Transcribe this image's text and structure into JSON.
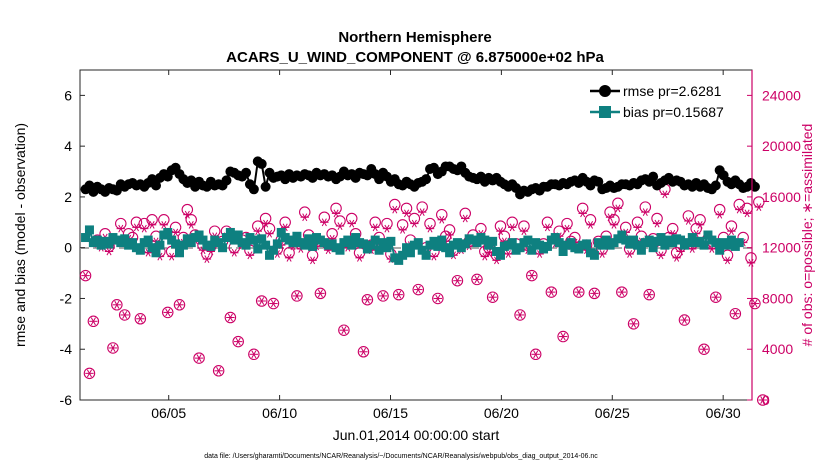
{
  "chart_data": {
    "type": "line",
    "title": "Northern Hemisphere",
    "subtitle": "ACARS_U_WIND_COMPONENT @ 6.875000e+02 hPa",
    "xlabel": "Jun.01,2014 00:00:00 start",
    "ylabel": "rmse and bias (model - observation)",
    "y2label": "# of obs: o=possible; ∗=assimilated",
    "footnote": "data file: /Users/gharamti/Documents/NCAR/Reanalysis/~/Documents/NCAR/Reanalysis/webpub/obs_diag_output_2014-06.nc",
    "xlim": [
      1.0,
      31.3
    ],
    "ylim": [
      -6,
      7
    ],
    "y2lim": [
      0,
      26000
    ],
    "x_ticks": [
      5,
      10,
      15,
      20,
      25,
      30
    ],
    "x_tick_labels": [
      "06/05",
      "06/10",
      "06/15",
      "06/20",
      "06/25",
      "06/30"
    ],
    "y_ticks": [
      -6,
      -4,
      -2,
      0,
      2,
      4,
      6
    ],
    "y_tick_labels": [
      "-6",
      "-4",
      "-2",
      "0",
      "2",
      "4",
      "6"
    ],
    "y2_ticks": [
      0,
      4000,
      8000,
      12000,
      16000,
      20000,
      24000
    ],
    "y2_tick_labels": [
      "0",
      "4000",
      "8000",
      "12000",
      "16000",
      "20000",
      "24000"
    ],
    "colors": {
      "rmse": "#000000",
      "bias": "#0e8080",
      "obs": "#cc0066",
      "zero": "#aaaaaa"
    },
    "legend_position": "top-right",
    "series": [
      {
        "name": "rmse pr=2.6281",
        "axis": "left",
        "marker": "circle",
        "values": [
          2.3,
          2.45,
          2.2,
          2.4,
          2.3,
          2.2,
          2.35,
          2.3,
          2.25,
          2.5,
          2.4,
          2.5,
          2.55,
          2.45,
          2.5,
          2.4,
          2.55,
          2.7,
          2.45,
          2.75,
          2.9,
          2.8,
          3.05,
          3.15,
          2.9,
          2.7,
          2.55,
          2.65,
          2.4,
          2.6,
          2.45,
          2.4,
          2.6,
          2.45,
          2.5,
          2.45,
          2.65,
          3.0,
          2.95,
          2.85,
          2.8,
          2.95,
          2.5,
          2.3,
          3.4,
          3.3,
          2.4,
          2.95,
          2.75,
          2.8,
          2.85,
          2.7,
          2.9,
          2.75,
          2.85,
          2.8,
          2.9,
          2.85,
          2.75,
          2.95,
          2.85,
          2.9,
          2.8,
          2.85,
          2.7,
          2.8,
          3.0,
          2.85,
          2.9,
          2.75,
          2.95,
          2.9,
          2.85,
          3.1,
          2.9,
          2.7,
          2.95,
          2.8,
          2.6,
          2.7,
          2.5,
          2.45,
          2.6,
          2.5,
          2.4,
          2.55,
          2.6,
          2.7,
          3.1,
          3.15,
          2.9,
          3.0,
          3.2,
          3.2,
          3.1,
          3.05,
          3.2,
          2.95,
          2.8,
          2.75,
          2.7,
          2.8,
          2.6,
          2.75,
          2.65,
          2.75,
          2.6,
          2.5,
          2.4,
          2.5,
          2.35,
          2.1,
          2.25,
          2.2,
          2.3,
          2.35,
          2.25,
          2.4,
          2.4,
          2.5,
          2.5,
          2.45,
          2.55,
          2.5,
          2.6,
          2.65,
          2.55,
          2.75,
          2.6,
          2.45,
          2.65,
          2.6,
          2.3,
          2.35,
          2.45,
          2.35,
          2.4,
          2.5,
          2.5,
          2.45,
          2.55,
          2.5,
          2.65,
          2.7,
          2.6,
          2.8,
          2.45,
          2.55,
          2.65,
          2.75,
          2.6,
          2.65,
          2.6,
          2.45,
          2.5,
          2.4,
          2.55,
          2.4,
          2.5,
          2.35,
          2.3,
          2.45,
          3.05,
          2.85,
          2.6,
          2.5,
          2.65,
          2.5,
          2.35,
          2.4,
          2.55,
          2.4
        ]
      },
      {
        "name": "bias pr=0.15687",
        "axis": "left",
        "marker": "square",
        "values": [
          0.4,
          0.7,
          0.2,
          0.3,
          0.1,
          0.25,
          0.15,
          0.4,
          0.3,
          0.2,
          0.35,
          0.1,
          0.2,
          0.0,
          -0.1,
          0.2,
          0.3,
          0.0,
          -0.2,
          0.1,
          0.5,
          0.6,
          0.3,
          0.15,
          -0.2,
          0.1,
          0.35,
          0.2,
          0.4,
          0.5,
          0.3,
          0.1,
          0.05,
          0.3,
          0.2,
          0.0,
          0.4,
          0.6,
          0.3,
          0.5,
          0.2,
          0.1,
          0.4,
          0.3,
          -0.05,
          0.35,
          0.1,
          -0.3,
          -0.1,
          0.15,
          0.6,
          0.4,
          0.3,
          0.2,
          0.45,
          0.2,
          0.1,
          0.35,
          0.05,
          0.4,
          0.3,
          0.2,
          0.1,
          0.15,
          0.0,
          -0.1,
          0.2,
          0.3,
          0.1,
          0.4,
          0.2,
          0.15,
          -0.05,
          0.1,
          0.3,
          -0.1,
          0.2,
          0.0,
          0.25,
          -0.4,
          -0.5,
          -0.3,
          0.0,
          -0.2,
          0.1,
          0.2,
          -0.1,
          -0.3,
          0.1,
          0.25,
          0.05,
          0.3,
          0.0,
          -0.2,
          0.1,
          0.2,
          0.0,
          0.15,
          0.35,
          0.3,
          0.2,
          0.4,
          0.3,
          0.1,
          0.25,
          -0.15,
          -0.3,
          0.05,
          0.1,
          0.2,
          -0.1,
          0.0,
          0.2,
          0.3,
          -0.1,
          0.2,
          0.1,
          -0.05,
          0.05,
          0.3,
          0.4,
          0.2,
          -0.15,
          0.1,
          0.2,
          0.0,
          -0.05,
          0.1,
          0.15,
          -0.2,
          -0.3,
          0.2,
          0.1,
          0.3,
          0.1,
          0.2,
          0.35,
          0.5,
          0.3,
          0.15,
          0.3,
          0.1,
          -0.1,
          0.2,
          0.3,
          0.0,
          0.25,
          0.4,
          0.1,
          0.3,
          0.2,
          0.35,
          0.3,
          0.1,
          0.2,
          0.4,
          0.2,
          0.25,
          0.1,
          0.5,
          0.3,
          0.2,
          -0.1,
          0.2,
          0.1,
          0.3,
          0.05,
          0.2
        ]
      },
      {
        "name": "obs possible",
        "axis": "right",
        "marker": "circle-open",
        "values": [
          9800,
          2100,
          6200,
          12600,
          12400,
          13100,
          12100,
          4100,
          7500,
          13900,
          6700,
          13100,
          12800,
          14000,
          6400,
          13900,
          12000,
          14200,
          12900,
          11700,
          14200,
          6900,
          11700,
          13600,
          7500,
          12800,
          15000,
          14200,
          13000,
          3300,
          12200,
          11500,
          12100,
          13300,
          2300,
          12500,
          13300,
          6500,
          12000,
          4600,
          12600,
          12800,
          11800,
          3600,
          13700,
          7800,
          14300,
          13500,
          7600,
          11900,
          12600,
          14000,
          11600,
          12500,
          8200,
          12300,
          14800,
          13000,
          11400,
          12500,
          8400,
          14400,
          12200,
          13100,
          15100,
          14100,
          5500,
          12400,
          14300,
          13100,
          11600,
          3800,
          7900,
          12200,
          14000,
          12800,
          8200,
          13900,
          11500,
          15400,
          8300,
          13800,
          15100,
          12600,
          14300,
          8700,
          15200,
          12000,
          13900,
          11700,
          8000,
          14600,
          12900,
          13400,
          11800,
          9400,
          12200,
          14700,
          12500,
          13000,
          9500,
          13500,
          11700,
          12000,
          8100,
          11400,
          13700,
          12900,
          11900,
          14000,
          12300,
          6700,
          13700,
          12200,
          9800,
          3600,
          11900,
          12300,
          14000,
          8500,
          12700,
          13300,
          5000,
          13900,
          12500,
          12800,
          8500,
          15100,
          12200,
          14200,
          8400,
          12500,
          11900,
          12900,
          14800,
          14200,
          15500,
          8500,
          13600,
          11900,
          6000,
          14000,
          12900,
          15200,
          8300,
          12700,
          14300,
          11800,
          16600,
          12800,
          13500,
          11600,
          12100,
          6300,
          14500,
          12300,
          13500,
          14200,
          4000,
          12700,
          12300,
          8100,
          15000,
          12800,
          11400,
          13700,
          6800,
          15400,
          12800,
          15100,
          11200,
          7600,
          15600,
          0
        ]
      },
      {
        "name": "obs assimilated",
        "axis": "right",
        "marker": "asterisk",
        "values": [
          9800,
          2100,
          6200,
          12300,
          12000,
          12800,
          11700,
          4100,
          7500,
          13500,
          6700,
          12700,
          12400,
          13600,
          6400,
          13500,
          11600,
          13800,
          12500,
          11300,
          13800,
          6900,
          11300,
          13200,
          7500,
          12400,
          14600,
          13800,
          12600,
          3300,
          11800,
          11100,
          11700,
          12900,
          2300,
          12100,
          12900,
          6500,
          11600,
          4600,
          12200,
          12400,
          11400,
          3600,
          13300,
          7800,
          13900,
          13100,
          7600,
          11500,
          12200,
          13600,
          11200,
          12100,
          8200,
          11900,
          14400,
          12600,
          11000,
          12100,
          8400,
          14000,
          11800,
          12700,
          14700,
          13700,
          5500,
          12000,
          13900,
          12700,
          11200,
          3800,
          7900,
          11800,
          13600,
          12400,
          8200,
          13500,
          11100,
          15000,
          8300,
          13400,
          14700,
          12200,
          13900,
          8700,
          14800,
          11600,
          13500,
          11300,
          8000,
          14200,
          12500,
          13000,
          11400,
          9400,
          11800,
          14300,
          12100,
          12600,
          9500,
          13100,
          11300,
          11600,
          8100,
          11000,
          13300,
          12500,
          11500,
          13600,
          11900,
          6700,
          13300,
          11800,
          9800,
          3600,
          11500,
          11900,
          13600,
          8500,
          12300,
          12900,
          5000,
          13500,
          12100,
          12400,
          8500,
          14700,
          11800,
          13800,
          8400,
          12100,
          11500,
          12500,
          14400,
          13800,
          15100,
          8500,
          13200,
          11500,
          6000,
          13600,
          12500,
          14800,
          8300,
          12300,
          13900,
          11400,
          16200,
          12400,
          13100,
          11200,
          11700,
          6300,
          14100,
          11900,
          13100,
          13800,
          4000,
          12300,
          11900,
          8100,
          14600,
          12400,
          11000,
          13300,
          6800,
          15000,
          12400,
          14700,
          10800,
          7600,
          15200,
          0
        ]
      }
    ]
  }
}
